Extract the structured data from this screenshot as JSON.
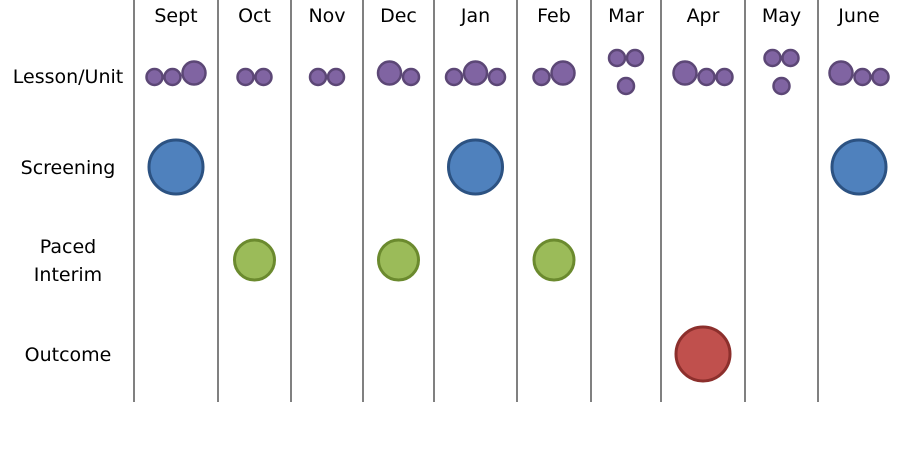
{
  "months": [
    "Sept",
    "Oct",
    "Nov",
    "Dec",
    "Jan",
    "Feb",
    "Mar",
    "Apr",
    "May",
    "June"
  ],
  "rows": [
    {
      "key": "lesson",
      "label_lines": [
        "Lesson/Unit"
      ]
    },
    {
      "key": "screening",
      "label_lines": [
        "Screening"
      ]
    },
    {
      "key": "interim",
      "label_lines": [
        "Paced",
        "Interim"
      ]
    },
    {
      "key": "outcome",
      "label_lines": [
        "Outcome"
      ]
    }
  ],
  "colors": {
    "lesson": {
      "fill": "#8064a2",
      "stroke": "#5c4776"
    },
    "screening": {
      "fill": "#4f81bd",
      "stroke": "#2c5282"
    },
    "interim": {
      "fill": "#9bbb59",
      "stroke": "#6b8a2e"
    },
    "outcome": {
      "fill": "#c0504d",
      "stroke": "#8c2f2c"
    },
    "grid": "#000000"
  },
  "lesson_assessments": {
    "Sept": [
      "small",
      "small",
      "large"
    ],
    "Oct": [
      "small",
      "small"
    ],
    "Nov": [
      "small",
      "small"
    ],
    "Dec": [
      "large",
      "small"
    ],
    "Jan": [
      "small",
      "large",
      "small"
    ],
    "Feb": [
      "small",
      "large"
    ],
    "Mar": [
      "small",
      "small",
      "small"
    ],
    "Apr": [
      "large",
      "small",
      "small"
    ],
    "May": [
      "small",
      "small",
      "small"
    ],
    "June": [
      "large",
      "small",
      "small"
    ]
  },
  "screening_months": [
    "Sept",
    "Jan",
    "June"
  ],
  "interim_months": [
    "Oct",
    "Dec",
    "Feb"
  ],
  "outcome_months": [
    "Apr"
  ]
}
